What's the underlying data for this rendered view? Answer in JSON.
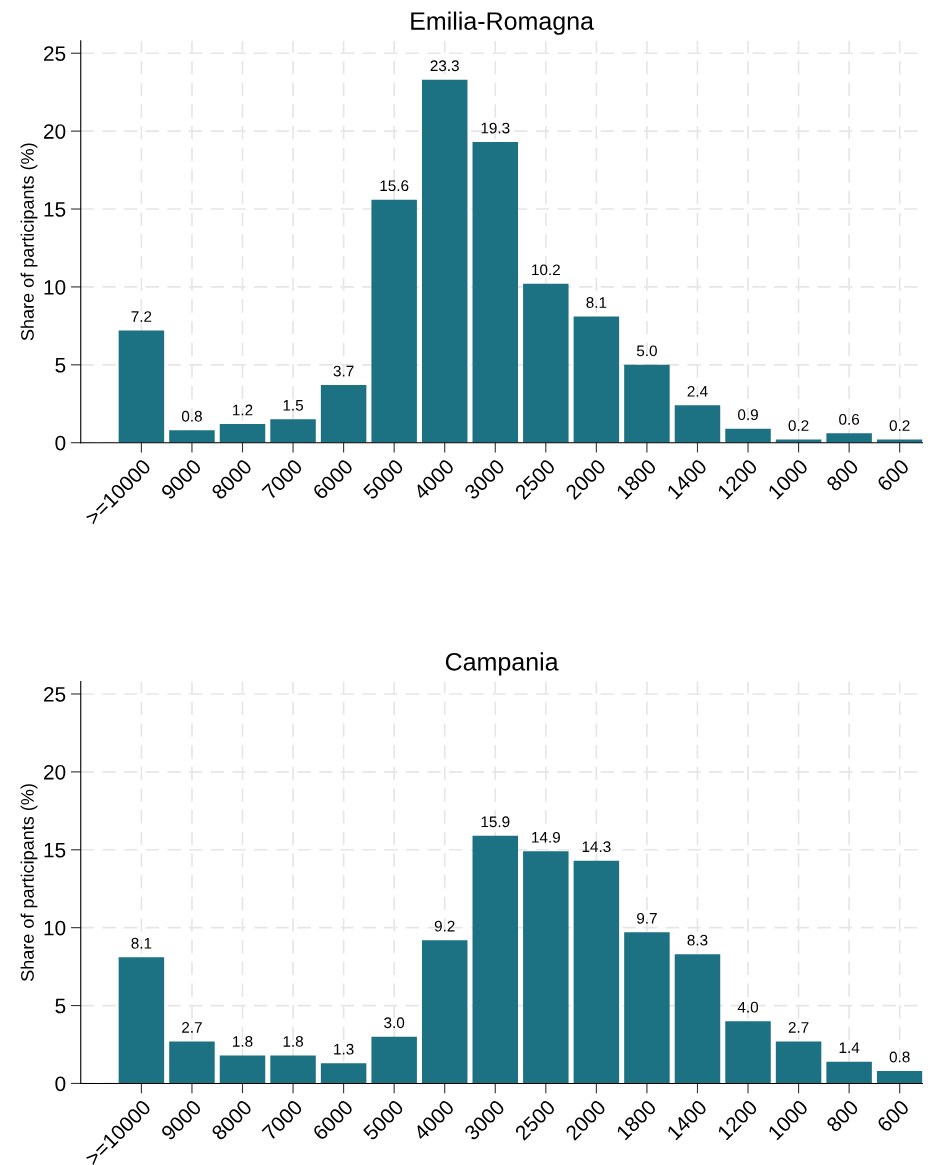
{
  "chart_data": [
    {
      "type": "bar",
      "title": "Emilia-Romagna",
      "ylabel": "Share of participants (%)",
      "categories": [
        ">=10000",
        "9000",
        "8000",
        "7000",
        "6000",
        "5000",
        "4000",
        "3000",
        "2500",
        "2000",
        "1800",
        "1400",
        "1200",
        "1000",
        "800",
        "600"
      ],
      "values": [
        7.2,
        0.8,
        1.2,
        1.5,
        3.7,
        15.6,
        23.3,
        19.3,
        10.2,
        8.1,
        5.0,
        2.4,
        0.9,
        0.2,
        0.6,
        0.2
      ],
      "value_labels": [
        "7.2",
        "0.8",
        "1.2",
        "1.5",
        "3.7",
        "15.6",
        "23.3",
        "19.3",
        "10.2",
        "8.1",
        "5.0",
        "2.4",
        "0.9",
        "0.2",
        "0.6",
        "0.2"
      ],
      "color": "#1c7282",
      "ylim": [
        0,
        25.8
      ],
      "yticks": [
        0,
        5,
        10,
        15,
        20,
        25
      ],
      "grid": true
    },
    {
      "type": "bar",
      "title": "Campania",
      "ylabel": "Share of participants (%)",
      "categories": [
        ">=10000",
        "9000",
        "8000",
        "7000",
        "6000",
        "5000",
        "4000",
        "3000",
        "2500",
        "2000",
        "1800",
        "1400",
        "1200",
        "1000",
        "800",
        "600"
      ],
      "values": [
        8.1,
        2.7,
        1.8,
        1.8,
        1.3,
        3.0,
        9.2,
        15.9,
        14.9,
        14.3,
        9.7,
        8.3,
        4.0,
        2.7,
        1.4,
        0.8
      ],
      "value_labels": [
        "8.1",
        "2.7",
        "1.8",
        "1.8",
        "1.3",
        "3.0",
        "9.2",
        "15.9",
        "14.9",
        "14.3",
        "9.7",
        "8.3",
        "4.0",
        "2.7",
        "1.4",
        "0.8"
      ],
      "color": "#1c7282",
      "ylim": [
        0,
        25.8
      ],
      "yticks": [
        0,
        5,
        10,
        15,
        20,
        25
      ],
      "grid": true
    }
  ]
}
